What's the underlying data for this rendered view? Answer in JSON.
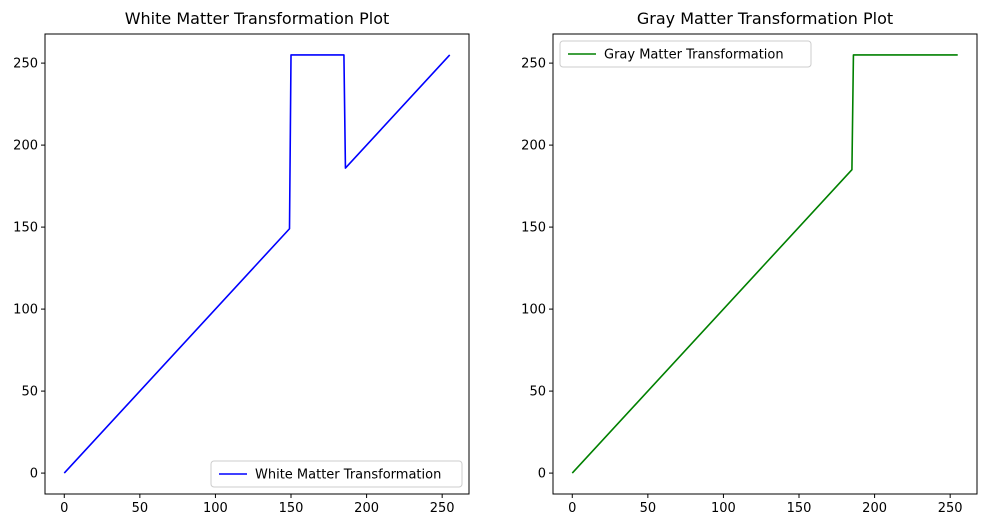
{
  "chart_data": [
    {
      "type": "line",
      "title": "White Matter Transformation Plot",
      "xlabel": "",
      "ylabel": "",
      "xlim": [
        -12.75,
        267.75
      ],
      "ylim": [
        -12.75,
        267.75
      ],
      "xticks": [
        0,
        50,
        100,
        150,
        200,
        250
      ],
      "yticks": [
        0,
        50,
        100,
        150,
        200,
        250
      ],
      "legend_position": "lower-right",
      "series": [
        {
          "name": "White Matter Transformation",
          "color": "#0000ff",
          "x": [
            0,
            149,
            150,
            185,
            186,
            255
          ],
          "y": [
            0,
            149,
            255,
            255,
            186,
            255
          ]
        }
      ]
    },
    {
      "type": "line",
      "title": "Gray Matter Transformation Plot",
      "xlabel": "",
      "ylabel": "",
      "xlim": [
        -12.75,
        267.75
      ],
      "ylim": [
        -12.75,
        267.75
      ],
      "xticks": [
        0,
        50,
        100,
        150,
        200,
        250
      ],
      "yticks": [
        0,
        50,
        100,
        150,
        200,
        250
      ],
      "legend_position": "upper-left",
      "series": [
        {
          "name": "Gray Matter Transformation",
          "color": "#008000",
          "x": [
            0,
            185,
            186,
            255
          ],
          "y": [
            0,
            185,
            255,
            255
          ]
        }
      ]
    }
  ]
}
